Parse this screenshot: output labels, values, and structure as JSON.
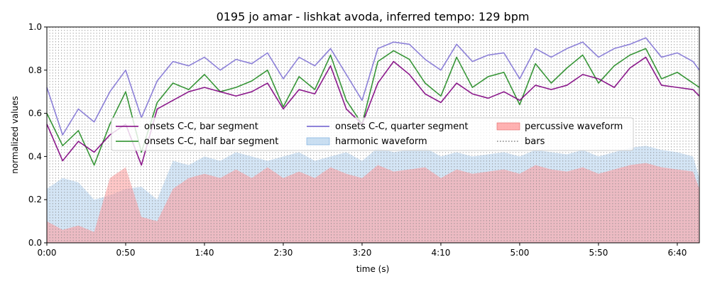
{
  "chart_data": {
    "type": "line",
    "title": "0195 jo amar - lishkat avoda, inferred tempo: 129 bpm",
    "xlabel": "time (s)",
    "ylabel": "normalized values",
    "xlim": [
      0,
      414
    ],
    "ylim": [
      0,
      1
    ],
    "x_ticks": [
      {
        "value": 0,
        "label": "0:00"
      },
      {
        "value": 50,
        "label": "0:50"
      },
      {
        "value": 100,
        "label": "1:40"
      },
      {
        "value": 150,
        "label": "2:30"
      },
      {
        "value": 200,
        "label": "3:20"
      },
      {
        "value": 250,
        "label": "4:10"
      },
      {
        "value": 300,
        "label": "5:00"
      },
      {
        "value": 350,
        "label": "5:50"
      },
      {
        "value": 400,
        "label": "6:40"
      }
    ],
    "y_ticks": [
      {
        "value": 0.0,
        "label": "0.0"
      },
      {
        "value": 0.2,
        "label": "0.2"
      },
      {
        "value": 0.4,
        "label": "0.4"
      },
      {
        "value": 0.6,
        "label": "0.6"
      },
      {
        "value": 0.8,
        "label": "0.8"
      },
      {
        "value": 1.0,
        "label": "1.0"
      }
    ],
    "grid": false,
    "legend_position": "center",
    "bar_period": 1.86,
    "series": [
      {
        "name": "onsets C-C, bar segment",
        "kind": "line",
        "color": "#800080",
        "x": [
          0,
          10,
          20,
          30,
          40,
          50,
          60,
          70,
          80,
          90,
          100,
          110,
          120,
          130,
          140,
          150,
          160,
          170,
          180,
          190,
          200,
          210,
          220,
          230,
          240,
          250,
          260,
          270,
          280,
          290,
          300,
          310,
          320,
          330,
          340,
          350,
          360,
          370,
          380,
          390,
          400,
          410,
          414
        ],
        "y": [
          0.55,
          0.38,
          0.47,
          0.42,
          0.5,
          0.55,
          0.36,
          0.62,
          0.66,
          0.7,
          0.72,
          0.7,
          0.68,
          0.7,
          0.74,
          0.62,
          0.71,
          0.69,
          0.82,
          0.62,
          0.55,
          0.74,
          0.84,
          0.78,
          0.69,
          0.65,
          0.74,
          0.69,
          0.67,
          0.7,
          0.66,
          0.73,
          0.71,
          0.73,
          0.78,
          0.76,
          0.72,
          0.81,
          0.86,
          0.73,
          0.72,
          0.71,
          0.68
        ]
      },
      {
        "name": "onsets C-C, half bar segment",
        "kind": "line",
        "color": "#228B22",
        "x": [
          0,
          10,
          20,
          30,
          40,
          50,
          60,
          70,
          80,
          90,
          100,
          110,
          120,
          130,
          140,
          150,
          160,
          170,
          180,
          190,
          200,
          210,
          220,
          230,
          240,
          250,
          260,
          270,
          280,
          290,
          300,
          310,
          320,
          330,
          340,
          350,
          360,
          370,
          380,
          390,
          400,
          410,
          414
        ],
        "y": [
          0.6,
          0.45,
          0.52,
          0.36,
          0.55,
          0.7,
          0.42,
          0.65,
          0.74,
          0.71,
          0.78,
          0.7,
          0.72,
          0.75,
          0.8,
          0.63,
          0.77,
          0.71,
          0.87,
          0.66,
          0.55,
          0.84,
          0.89,
          0.85,
          0.74,
          0.68,
          0.86,
          0.72,
          0.77,
          0.79,
          0.64,
          0.83,
          0.74,
          0.81,
          0.87,
          0.74,
          0.82,
          0.87,
          0.9,
          0.76,
          0.79,
          0.74,
          0.72
        ]
      },
      {
        "name": "onsets C-C, quarter segment",
        "kind": "line",
        "color": "#6A5ACD",
        "x": [
          0,
          10,
          20,
          30,
          40,
          50,
          60,
          70,
          80,
          90,
          100,
          110,
          120,
          130,
          140,
          150,
          160,
          170,
          180,
          190,
          200,
          210,
          220,
          230,
          240,
          250,
          260,
          270,
          280,
          290,
          300,
          310,
          320,
          330,
          340,
          350,
          360,
          370,
          380,
          390,
          400,
          410,
          414
        ],
        "y": [
          0.72,
          0.5,
          0.62,
          0.56,
          0.7,
          0.8,
          0.58,
          0.75,
          0.84,
          0.82,
          0.86,
          0.8,
          0.85,
          0.83,
          0.88,
          0.76,
          0.86,
          0.82,
          0.9,
          0.78,
          0.66,
          0.9,
          0.93,
          0.92,
          0.85,
          0.8,
          0.92,
          0.84,
          0.87,
          0.88,
          0.76,
          0.9,
          0.86,
          0.9,
          0.93,
          0.86,
          0.9,
          0.92,
          0.95,
          0.86,
          0.88,
          0.84,
          0.8
        ]
      },
      {
        "name": "harmonic waveform",
        "kind": "area",
        "color": "#9FC5E8",
        "x": [
          0,
          10,
          20,
          30,
          40,
          50,
          60,
          70,
          80,
          90,
          100,
          110,
          120,
          130,
          140,
          150,
          160,
          170,
          180,
          190,
          200,
          210,
          220,
          230,
          240,
          250,
          260,
          270,
          280,
          290,
          300,
          310,
          320,
          330,
          340,
          350,
          360,
          370,
          380,
          390,
          400,
          410,
          414
        ],
        "y": [
          0.25,
          0.3,
          0.28,
          0.2,
          0.22,
          0.25,
          0.26,
          0.2,
          0.38,
          0.36,
          0.4,
          0.38,
          0.42,
          0.4,
          0.38,
          0.4,
          0.42,
          0.38,
          0.4,
          0.42,
          0.38,
          0.44,
          0.42,
          0.43,
          0.44,
          0.4,
          0.42,
          0.4,
          0.41,
          0.42,
          0.4,
          0.43,
          0.42,
          0.41,
          0.43,
          0.4,
          0.42,
          0.44,
          0.45,
          0.43,
          0.42,
          0.4,
          0.3
        ]
      },
      {
        "name": "percussive waveform",
        "kind": "area",
        "color": "#FF9999",
        "x": [
          0,
          10,
          20,
          30,
          40,
          50,
          60,
          70,
          80,
          90,
          100,
          110,
          120,
          130,
          140,
          150,
          160,
          170,
          180,
          190,
          200,
          210,
          220,
          230,
          240,
          250,
          260,
          270,
          280,
          290,
          300,
          310,
          320,
          330,
          340,
          350,
          360,
          370,
          380,
          390,
          400,
          410,
          414
        ],
        "y": [
          0.1,
          0.06,
          0.08,
          0.05,
          0.3,
          0.35,
          0.12,
          0.1,
          0.25,
          0.3,
          0.32,
          0.3,
          0.34,
          0.3,
          0.35,
          0.3,
          0.33,
          0.3,
          0.35,
          0.32,
          0.3,
          0.36,
          0.33,
          0.34,
          0.35,
          0.3,
          0.34,
          0.32,
          0.33,
          0.34,
          0.32,
          0.36,
          0.34,
          0.33,
          0.35,
          0.32,
          0.34,
          0.36,
          0.37,
          0.35,
          0.34,
          0.33,
          0.25
        ]
      },
      {
        "name": "bars",
        "kind": "vlines",
        "color": "#808080",
        "x": [],
        "y": []
      }
    ]
  }
}
